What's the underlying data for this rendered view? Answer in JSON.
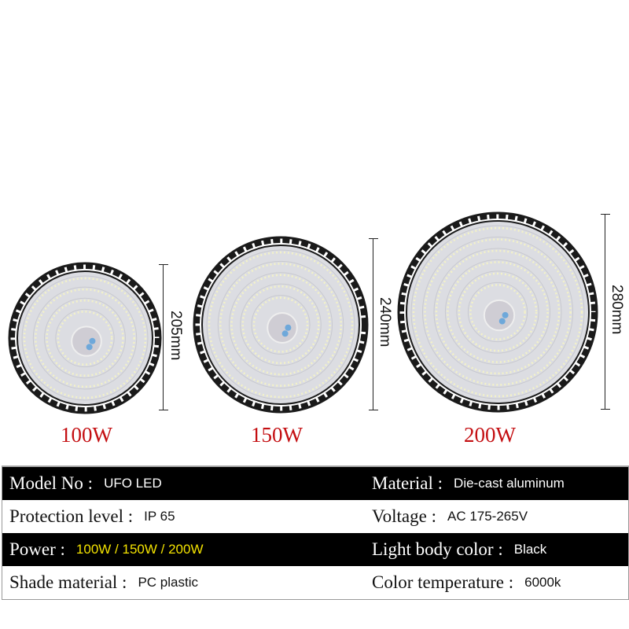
{
  "products": [
    {
      "power": "100W",
      "diameter": "205mm"
    },
    {
      "power": "150W",
      "diameter": "240mm"
    },
    {
      "power": "200W",
      "diameter": "280mm"
    }
  ],
  "specs": [
    {
      "left": {
        "label": "Model No :",
        "value": "UFO LED"
      },
      "right": {
        "label": "Material :",
        "value": "Die-cast aluminum"
      }
    },
    {
      "left": {
        "label": "Protection level :",
        "value": "IP 65"
      },
      "right": {
        "label": "Voltage :",
        "value": "AC 175-265V"
      }
    },
    {
      "left": {
        "label": "Power :",
        "value": "100W / 150W / 200W"
      },
      "right": {
        "label": "Light body color :",
        "value": "Black"
      }
    },
    {
      "left": {
        "label": "Shade material :",
        "value": "PC plastic"
      },
      "right": {
        "label": "Color temperature :",
        "value": "6000k"
      }
    }
  ],
  "colors": {
    "power_label": "#c40f12",
    "highlight": "#f3e200",
    "frame": "#1a1a1a"
  }
}
